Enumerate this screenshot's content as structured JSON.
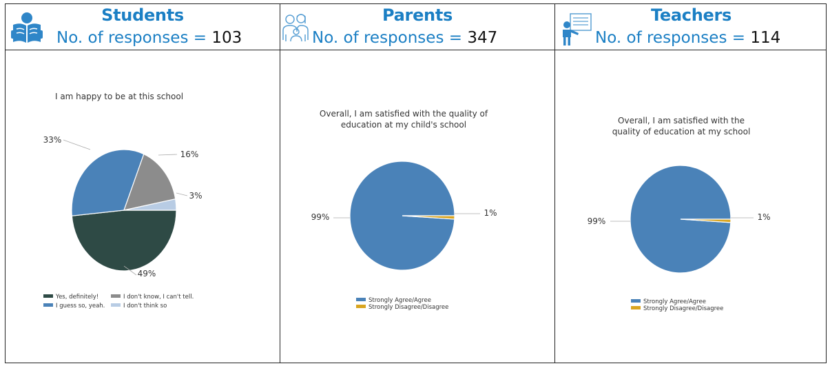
{
  "columns": [
    {
      "title": "Students",
      "icon": "reading-student-icon",
      "responses_prefix": "No. of responses = ",
      "responses_count": "103"
    },
    {
      "title": "Parents",
      "icon": "parent-child-icon",
      "responses_prefix": "No. of responses = ",
      "responses_count": "347"
    },
    {
      "title": "Teachers",
      "icon": "teacher-board-icon",
      "responses_prefix": "No. of responses = ",
      "responses_count": "114"
    }
  ],
  "chart_data": [
    {
      "type": "pie",
      "title": "I am happy to be at this school",
      "categories": [
        "Yes, definitely!",
        "I guess so, yeah.",
        "I don't know, I can't tell.",
        "I don't think so"
      ],
      "values": [
        49,
        33,
        16,
        3
      ],
      "labels": [
        "49%",
        "33%",
        "16%",
        "3%"
      ],
      "colors": [
        "#2e4a45",
        "#4a82b8",
        "#8c8c8c",
        "#b8cce4"
      ],
      "legend": "bottom"
    },
    {
      "type": "pie",
      "title": "Overall, I am satisfied with the quality of education at my child's school",
      "categories": [
        "Strongly Agree/Agree",
        "Strongly Disagree/Disagree"
      ],
      "values": [
        99,
        1
      ],
      "labels": [
        "99%",
        "1%"
      ],
      "colors": [
        "#4a82b8",
        "#d9a520"
      ],
      "legend": "bottom"
    },
    {
      "type": "pie",
      "title": "Overall, I am satisfied with the quality of education at my school",
      "categories": [
        "Strongly Agree/Agree",
        "Strongly Disagree/Disagree"
      ],
      "values": [
        99,
        1
      ],
      "labels": [
        "99%",
        "1%"
      ],
      "colors": [
        "#4a82b8",
        "#d9a520"
      ],
      "legend": "bottom"
    }
  ]
}
